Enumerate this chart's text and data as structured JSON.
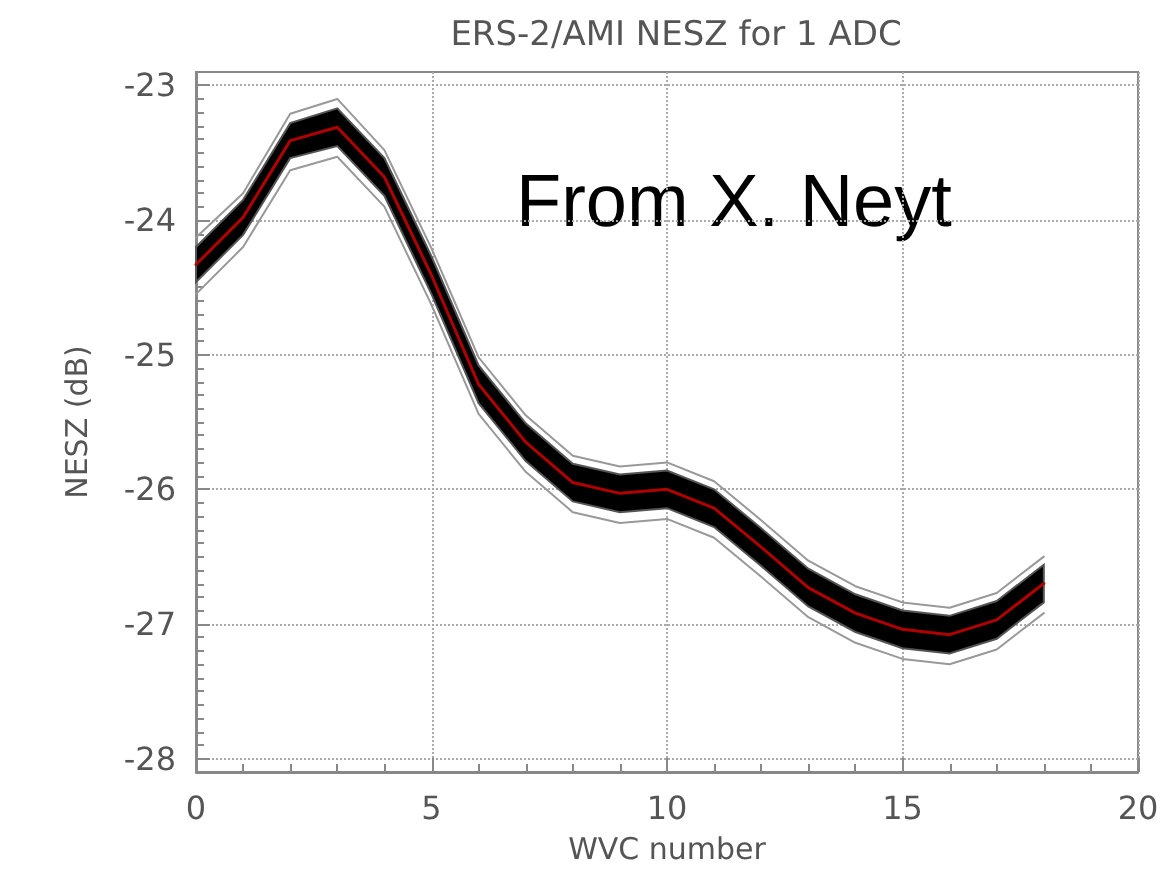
{
  "chart_data": {
    "type": "line",
    "title": "ERS-2/AMI NESZ for 1 ADC",
    "xlabel": "WVC number",
    "ylabel": "NESZ (dB)",
    "x": [
      0,
      1,
      2,
      3,
      4,
      5,
      6,
      7,
      8,
      9,
      10,
      11,
      12,
      13,
      14,
      15,
      16,
      17,
      18
    ],
    "series": [
      {
        "color": "#b00000",
        "values": [
          -24.33,
          -23.98,
          -23.41,
          -23.31,
          -23.68,
          -24.41,
          -25.22,
          -25.65,
          -25.95,
          -26.03,
          -26.0,
          -26.14,
          -26.43,
          -26.73,
          -26.92,
          -27.04,
          -27.08,
          -26.97,
          -26.7
        ],
        "lower": [
          -24.46,
          -24.11,
          -23.54,
          -23.45,
          -23.82,
          -24.55,
          -25.36,
          -25.79,
          -26.09,
          -26.17,
          -26.14,
          -26.28,
          -26.57,
          -26.87,
          -27.06,
          -27.18,
          -27.22,
          -27.11,
          -26.84
        ],
        "upper": [
          -24.2,
          -23.85,
          -23.28,
          -23.17,
          -23.54,
          -24.27,
          -25.08,
          -25.51,
          -25.81,
          -25.89,
          -25.86,
          -26.0,
          -26.29,
          -26.59,
          -26.78,
          -26.9,
          -26.94,
          -26.83,
          -26.56
        ]
      },
      {
        "color": "#999999",
        "values": [
          -24.13,
          -23.8,
          -23.21,
          -23.1,
          -23.48,
          -24.21,
          -25.02,
          -25.45,
          -25.75,
          -25.83,
          -25.8,
          -25.94,
          -26.23,
          -26.53,
          -26.72,
          -26.84,
          -26.88,
          -26.77,
          -26.5
        ]
      },
      {
        "color": "#999999",
        "values": [
          -24.55,
          -24.2,
          -23.63,
          -23.53,
          -23.9,
          -24.63,
          -25.44,
          -25.87,
          -26.17,
          -26.25,
          -26.22,
          -26.36,
          -26.65,
          -26.95,
          -27.14,
          -27.26,
          -27.3,
          -27.19,
          -26.92
        ]
      }
    ],
    "xlim": [
      0,
      20
    ],
    "xticks": [
      0,
      5,
      10,
      15,
      20
    ],
    "ylim": [
      -28.1,
      -22.9
    ],
    "yticks": [
      -28,
      -27,
      -26,
      -25,
      -24,
      -23
    ],
    "grid": true,
    "marker": "none",
    "line_style": "solid",
    "annotations": [
      "From X. Neyt"
    ]
  }
}
